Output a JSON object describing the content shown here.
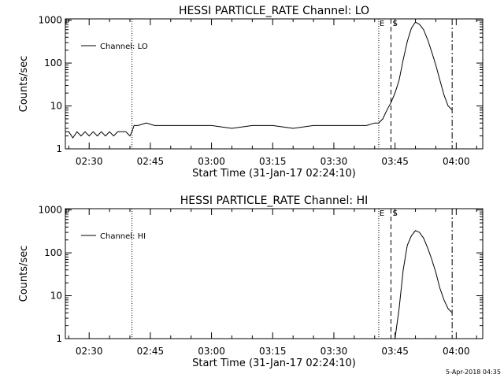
{
  "footer": {
    "timestamp": "5-Apr-2018 04:35"
  },
  "chart_data": [
    {
      "type": "line",
      "title": "HESSI PARTICLE_RATE Channel: LO",
      "xlabel": "Start Time (31-Jan-17 02:24:10)",
      "ylabel": "Counts/sec",
      "yscale": "log",
      "ylim": [
        1,
        1000
      ],
      "xlim": [
        "02:24:10",
        "04:06:30"
      ],
      "xticks": [
        "02:30",
        "02:45",
        "03:00",
        "03:15",
        "03:30",
        "03:45",
        "04:00"
      ],
      "yticks": [
        "1",
        "10",
        "100",
        "1000"
      ],
      "grid": false,
      "legend": {
        "position": "top-left",
        "entries": [
          "Channel: LO"
        ]
      },
      "markers": [
        {
          "time": "02:40:30",
          "style": "dotted",
          "label": ""
        },
        {
          "time": "03:41:00",
          "style": "dotted",
          "label": "E"
        },
        {
          "time": "03:44:00",
          "style": "dashed",
          "label": "S"
        },
        {
          "time": "03:59:00",
          "style": "dashdot",
          "label": ""
        }
      ],
      "series": [
        {
          "name": "Channel: LO",
          "x": [
            "02:24:10",
            "02:25:00",
            "02:26:00",
            "02:27:00",
            "02:28:00",
            "02:29:00",
            "02:30:00",
            "02:31:00",
            "02:32:00",
            "02:33:00",
            "02:34:00",
            "02:35:00",
            "02:36:00",
            "02:37:00",
            "02:38:00",
            "02:39:00",
            "02:40:00",
            "02:40:30",
            "02:41:00",
            "02:42:00",
            "02:44:00",
            "02:46:00",
            "02:48:00",
            "02:50:00",
            "02:55:00",
            "03:00:00",
            "03:05:00",
            "03:10:00",
            "03:15:00",
            "03:20:00",
            "03:25:00",
            "03:30:00",
            "03:35:00",
            "03:38:00",
            "03:40:00",
            "03:41:00",
            "03:42:00",
            "03:43:00",
            "03:44:00",
            "03:45:00",
            "03:46:00",
            "03:47:00",
            "03:48:00",
            "03:49:00",
            "03:50:00",
            "03:51:00",
            "03:52:00",
            "03:53:00",
            "03:54:00",
            "03:55:00",
            "03:56:00",
            "03:57:00",
            "03:58:00",
            "03:59:00"
          ],
          "y": [
            2.5,
            2.5,
            1.8,
            2.5,
            2.0,
            2.5,
            2.0,
            2.5,
            2.0,
            2.5,
            2.0,
            2.5,
            2.0,
            2.5,
            2.5,
            2.5,
            2.0,
            2.5,
            3.5,
            3.5,
            4.0,
            3.5,
            3.5,
            3.5,
            3.5,
            3.5,
            3.0,
            3.5,
            3.5,
            3.0,
            3.5,
            3.5,
            3.5,
            3.5,
            4.0,
            4.0,
            5.0,
            8,
            12,
            20,
            40,
            120,
            320,
            650,
            900,
            800,
            600,
            350,
            180,
            90,
            40,
            18,
            10,
            8
          ]
        }
      ]
    },
    {
      "type": "line",
      "title": "HESSI PARTICLE_RATE Channel: HI",
      "xlabel": "Start Time (31-Jan-17 02:24:10)",
      "ylabel": "Counts/sec",
      "yscale": "log",
      "ylim": [
        1,
        1000
      ],
      "xlim": [
        "02:24:10",
        "04:06:30"
      ],
      "xticks": [
        "02:30",
        "02:45",
        "03:00",
        "03:15",
        "03:30",
        "03:45",
        "04:00"
      ],
      "yticks": [
        "1",
        "10",
        "100",
        "1000"
      ],
      "grid": false,
      "legend": {
        "position": "top-left",
        "entries": [
          "Channel: HI"
        ]
      },
      "markers": [
        {
          "time": "02:40:30",
          "style": "dotted",
          "label": ""
        },
        {
          "time": "03:41:00",
          "style": "dotted",
          "label": "E"
        },
        {
          "time": "03:44:00",
          "style": "dashed",
          "label": "S"
        },
        {
          "time": "03:59:00",
          "style": "dashdot",
          "label": ""
        }
      ],
      "series": [
        {
          "name": "Channel: HI",
          "x": [
            "03:45:00",
            "03:46:00",
            "03:47:00",
            "03:48:00",
            "03:49:00",
            "03:50:00",
            "03:51:00",
            "03:52:00",
            "03:53:00",
            "03:54:00",
            "03:55:00",
            "03:56:00",
            "03:57:00",
            "03:58:00",
            "03:59:00"
          ],
          "y": [
            1,
            5,
            40,
            150,
            250,
            330,
            300,
            220,
            130,
            70,
            35,
            15,
            8,
            5,
            4
          ]
        }
      ]
    }
  ]
}
